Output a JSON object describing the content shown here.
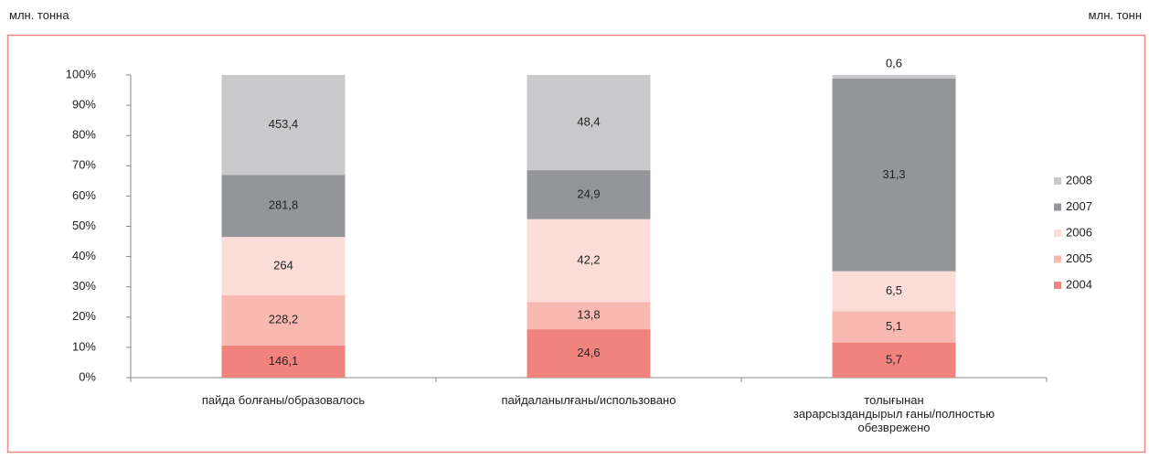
{
  "chart_data": {
    "type": "percent_stacked_bar",
    "unit_left": "млн. тонна",
    "unit_right": "млн. тонн",
    "categories": [
      "пайда болғаны/образовалось",
      "пайдаланылғаны/использовано",
      "толығынан\nзарарсыздандырыл ғаны/полностью\nобезврежено"
    ],
    "series": [
      {
        "name": "2004",
        "color": "#f1837f",
        "values": [
          146.1,
          24.6,
          5.7
        ],
        "value_labels": [
          "146,1",
          "24,6",
          "5,7"
        ]
      },
      {
        "name": "2005",
        "color": "#f7b9b1",
        "values": [
          228.2,
          13.8,
          5.1
        ],
        "value_labels": [
          "228,2",
          "13,8",
          "5,1"
        ]
      },
      {
        "name": "2006",
        "color": "#fcddd7",
        "values": [
          264,
          42.2,
          6.5
        ],
        "value_labels": [
          "264",
          "42,2",
          "6,5"
        ]
      },
      {
        "name": "2007",
        "color": "#939598",
        "values": [
          281.8,
          24.9,
          31.3
        ],
        "value_labels": [
          "281,8",
          "24,9",
          "31,3"
        ]
      },
      {
        "name": "2008",
        "color": "#c9c9cb",
        "values": [
          453.4,
          48.4,
          0.6
        ],
        "value_labels": [
          "453,4",
          "48,4",
          "0,6"
        ]
      }
    ],
    "ylim": [
      0,
      100
    ],
    "yticks": [
      {
        "value": 0,
        "label": "0%"
      },
      {
        "value": 10,
        "label": "10%"
      },
      {
        "value": 20,
        "label": "20%"
      },
      {
        "value": 30,
        "label": "30%"
      },
      {
        "value": 40,
        "label": "40%"
      },
      {
        "value": 50,
        "label": "50%"
      },
      {
        "value": 60,
        "label": "60%"
      },
      {
        "value": 70,
        "label": "70%"
      },
      {
        "value": 80,
        "label": "80%"
      },
      {
        "value": 90,
        "label": "90%"
      },
      {
        "value": 100,
        "label": "100%"
      }
    ],
    "legend_position": "right"
  }
}
